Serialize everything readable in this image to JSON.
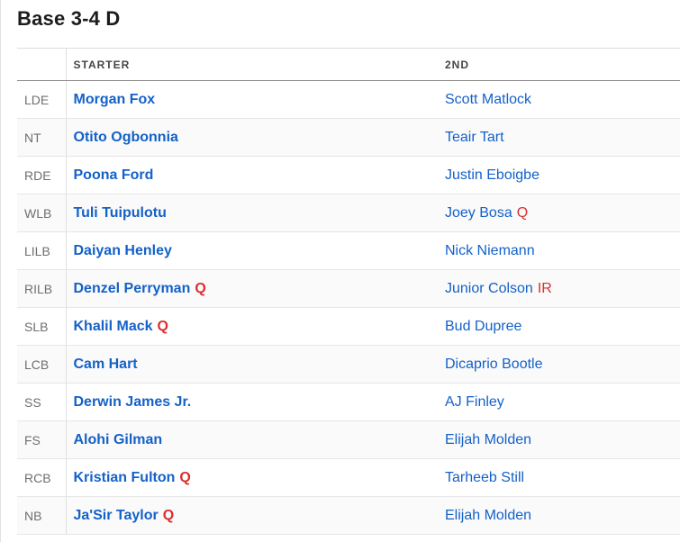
{
  "page": {
    "title": "Base 3-4 D"
  },
  "table": {
    "headers": {
      "position": "",
      "starter": "STARTER",
      "second": "2ND"
    },
    "rows": [
      {
        "pos": "LDE",
        "starter": "Morgan Fox",
        "starter_status": "",
        "second": "Scott Matlock",
        "second_status": ""
      },
      {
        "pos": "NT",
        "starter": "Otito Ogbonnia",
        "starter_status": "",
        "second": "Teair Tart",
        "second_status": ""
      },
      {
        "pos": "RDE",
        "starter": "Poona Ford",
        "starter_status": "",
        "second": "Justin Eboigbe",
        "second_status": ""
      },
      {
        "pos": "WLB",
        "starter": "Tuli Tuipulotu",
        "starter_status": "",
        "second": "Joey Bosa",
        "second_status": "Q"
      },
      {
        "pos": "LILB",
        "starter": "Daiyan Henley",
        "starter_status": "",
        "second": "Nick Niemann",
        "second_status": ""
      },
      {
        "pos": "RILB",
        "starter": "Denzel Perryman",
        "starter_status": "Q",
        "second": "Junior Colson",
        "second_status": "IR"
      },
      {
        "pos": "SLB",
        "starter": "Khalil Mack",
        "starter_status": "Q",
        "second": "Bud Dupree",
        "second_status": ""
      },
      {
        "pos": "LCB",
        "starter": "Cam Hart",
        "starter_status": "",
        "second": "Dicaprio Bootle",
        "second_status": ""
      },
      {
        "pos": "SS",
        "starter": "Derwin James Jr.",
        "starter_status": "",
        "second": "AJ Finley",
        "second_status": ""
      },
      {
        "pos": "FS",
        "starter": "Alohi Gilman",
        "starter_status": "",
        "second": "Elijah Molden",
        "second_status": ""
      },
      {
        "pos": "RCB",
        "starter": "Kristian Fulton",
        "starter_status": "Q",
        "second": "Tarheeb Still",
        "second_status": ""
      },
      {
        "pos": "NB",
        "starter": "Ja'Sir Taylor",
        "starter_status": "Q",
        "second": "Elijah Molden",
        "second_status": ""
      }
    ]
  },
  "colors": {
    "link_blue": "#1461c8",
    "status_red": "#db2f2f",
    "stripe_gray": "#fafafa",
    "header_rule": "#8c8c8c",
    "row_rule": "#e6e6e6"
  }
}
